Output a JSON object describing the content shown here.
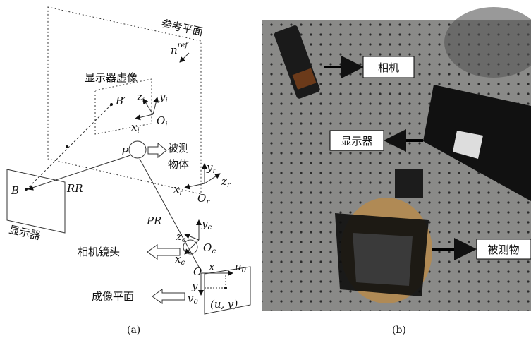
{
  "panel_a": {
    "reference_plane": "参考平面",
    "normal": {
      "base": "n",
      "sup": "ref"
    },
    "virtual_display": "显示器虚像",
    "b_prime": "B′",
    "frame_i": {
      "z": "z",
      "y": "y",
      "x": "x",
      "origin": "O",
      "sub": "i"
    },
    "point_p": "P",
    "object": [
      "被测",
      "物体"
    ],
    "frame_r": {
      "y": "y",
      "z": "z",
      "x": "x",
      "origin": "O",
      "sub": "r"
    },
    "point_b": "B",
    "ray_rr": "RR",
    "display": "显示器",
    "ray_pr": "PR",
    "frame_c": {
      "y": "y",
      "z": "z",
      "x": "x",
      "origin": "O",
      "sub": "c"
    },
    "lens": "相机镜头",
    "image_origin": "O",
    "image_x": "x",
    "image_y": "y",
    "u0": {
      "base": "u",
      "sub": "0"
    },
    "v0": {
      "base": "v",
      "sub": "0"
    },
    "image_point": "(u, v)",
    "image_plane": "成像平面",
    "caption": "(a)"
  },
  "panel_b": {
    "camera": "相机",
    "display": "显示器",
    "object": "被测物",
    "caption": "(b)"
  }
}
